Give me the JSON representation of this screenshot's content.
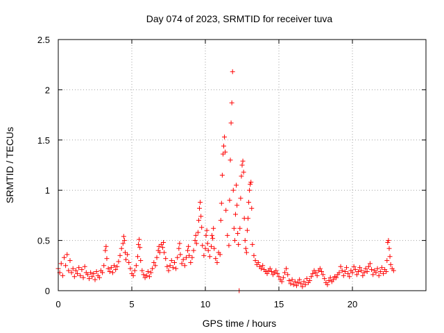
{
  "chart_data": {
    "type": "scatter",
    "title": "Day 074 of 2023, SRMTID for receiver tuva",
    "xlabel": "GPS time / hours",
    "ylabel": "SRMTID / TECUs",
    "xlim": [
      0,
      25
    ],
    "ylim": [
      0,
      2.5
    ],
    "x_ticks": [
      0,
      5,
      10,
      15,
      20
    ],
    "x_tick_labels": [
      "0",
      "5",
      "10",
      "15",
      "20"
    ],
    "y_ticks": [
      0,
      0.5,
      1,
      1.5,
      2,
      2.5
    ],
    "y_tick_labels": [
      "0",
      "0.5",
      "1",
      "1.5",
      "2",
      "2.5"
    ],
    "grid": true,
    "marker": "+",
    "color": "#ff0000",
    "series": [
      {
        "name": "SRMTID",
        "points": [
          [
            0.0,
            0.22
          ],
          [
            0.1,
            0.18
          ],
          [
            0.2,
            0.27
          ],
          [
            0.3,
            0.15
          ],
          [
            0.4,
            0.33
          ],
          [
            0.5,
            0.25
          ],
          [
            0.6,
            0.36
          ],
          [
            0.7,
            0.2
          ],
          [
            0.8,
            0.3
          ],
          [
            0.9,
            0.18
          ],
          [
            1.0,
            0.22
          ],
          [
            1.1,
            0.14
          ],
          [
            1.2,
            0.2
          ],
          [
            1.3,
            0.17
          ],
          [
            1.4,
            0.23
          ],
          [
            1.5,
            0.15
          ],
          [
            1.6,
            0.21
          ],
          [
            1.7,
            0.13
          ],
          [
            1.8,
            0.24
          ],
          [
            1.9,
            0.18
          ],
          [
            2.0,
            0.16
          ],
          [
            2.1,
            0.12
          ],
          [
            2.2,
            0.18
          ],
          [
            2.3,
            0.14
          ],
          [
            2.4,
            0.17
          ],
          [
            2.5,
            0.11
          ],
          [
            2.6,
            0.19
          ],
          [
            2.7,
            0.15
          ],
          [
            2.8,
            0.13
          ],
          [
            2.9,
            0.2
          ],
          [
            3.0,
            0.18
          ],
          [
            3.1,
            0.25
          ],
          [
            3.2,
            0.4
          ],
          [
            3.25,
            0.44
          ],
          [
            3.3,
            0.32
          ],
          [
            3.4,
            0.22
          ],
          [
            3.5,
            0.19
          ],
          [
            3.6,
            0.23
          ],
          [
            3.7,
            0.18
          ],
          [
            3.8,
            0.25
          ],
          [
            3.9,
            0.21
          ],
          [
            4.0,
            0.24
          ],
          [
            4.1,
            0.29
          ],
          [
            4.2,
            0.35
          ],
          [
            4.3,
            0.42
          ],
          [
            4.4,
            0.47
          ],
          [
            4.45,
            0.54
          ],
          [
            4.5,
            0.5
          ],
          [
            4.55,
            0.38
          ],
          [
            4.6,
            0.31
          ],
          [
            4.7,
            0.36
          ],
          [
            4.8,
            0.28
          ],
          [
            4.9,
            0.22
          ],
          [
            5.0,
            0.17
          ],
          [
            5.1,
            0.15
          ],
          [
            5.2,
            0.2
          ],
          [
            5.3,
            0.25
          ],
          [
            5.4,
            0.34
          ],
          [
            5.45,
            0.46
          ],
          [
            5.5,
            0.51
          ],
          [
            5.55,
            0.43
          ],
          [
            5.6,
            0.3
          ],
          [
            5.7,
            0.2
          ],
          [
            5.8,
            0.16
          ],
          [
            5.9,
            0.13
          ],
          [
            6.0,
            0.15
          ],
          [
            6.1,
            0.19
          ],
          [
            6.2,
            0.14
          ],
          [
            6.3,
            0.18
          ],
          [
            6.4,
            0.22
          ],
          [
            6.5,
            0.28
          ],
          [
            6.6,
            0.25
          ],
          [
            6.7,
            0.33
          ],
          [
            6.8,
            0.4
          ],
          [
            6.85,
            0.44
          ],
          [
            6.9,
            0.38
          ],
          [
            7.0,
            0.46
          ],
          [
            7.1,
            0.43
          ],
          [
            7.15,
            0.48
          ],
          [
            7.2,
            0.38
          ],
          [
            7.3,
            0.32
          ],
          [
            7.4,
            0.24
          ],
          [
            7.5,
            0.2
          ],
          [
            7.6,
            0.25
          ],
          [
            7.7,
            0.3
          ],
          [
            7.8,
            0.23
          ],
          [
            7.9,
            0.28
          ],
          [
            8.0,
            0.22
          ],
          [
            8.1,
            0.33
          ],
          [
            8.2,
            0.42
          ],
          [
            8.25,
            0.47
          ],
          [
            8.3,
            0.36
          ],
          [
            8.4,
            0.27
          ],
          [
            8.5,
            0.31
          ],
          [
            8.6,
            0.25
          ],
          [
            8.7,
            0.33
          ],
          [
            8.8,
            0.4
          ],
          [
            8.85,
            0.44
          ],
          [
            8.9,
            0.35
          ],
          [
            9.0,
            0.28
          ],
          [
            9.1,
            0.33
          ],
          [
            9.2,
            0.4
          ],
          [
            9.3,
            0.5
          ],
          [
            9.35,
            0.55
          ],
          [
            9.4,
            0.47
          ],
          [
            9.5,
            0.58
          ],
          [
            9.55,
            0.7
          ],
          [
            9.6,
            0.82
          ],
          [
            9.65,
            0.88
          ],
          [
            9.7,
            0.74
          ],
          [
            9.75,
            0.63
          ],
          [
            9.8,
            0.45
          ],
          [
            9.9,
            0.35
          ],
          [
            10.0,
            0.42
          ],
          [
            10.05,
            0.55
          ],
          [
            10.1,
            0.6
          ],
          [
            10.15,
            0.47
          ],
          [
            10.2,
            0.4
          ],
          [
            10.3,
            0.34
          ],
          [
            10.4,
            0.44
          ],
          [
            10.45,
            0.55
          ],
          [
            10.5,
            0.52
          ],
          [
            10.55,
            0.62
          ],
          [
            10.6,
            0.42
          ],
          [
            10.7,
            0.32
          ],
          [
            10.8,
            0.28
          ],
          [
            10.9,
            0.38
          ],
          [
            11.0,
            0.36
          ],
          [
            11.05,
            0.7
          ],
          [
            11.1,
            0.87
          ],
          [
            11.15,
            1.15
          ],
          [
            11.2,
            1.36
          ],
          [
            11.25,
            1.44
          ],
          [
            11.3,
            1.53
          ],
          [
            11.35,
            1.38
          ],
          [
            11.4,
            0.8
          ],
          [
            11.5,
            0.55
          ],
          [
            11.6,
            0.45
          ],
          [
            11.65,
            0.9
          ],
          [
            11.7,
            1.3
          ],
          [
            11.75,
            1.67
          ],
          [
            11.8,
            1.87
          ],
          [
            11.85,
            2.18
          ],
          [
            11.9,
            1.0
          ],
          [
            11.95,
            0.62
          ],
          [
            12.0,
            0.5
          ],
          [
            12.05,
            0.76
          ],
          [
            12.1,
            1.05
          ],
          [
            12.15,
            0.85
          ],
          [
            12.2,
            0.57
          ],
          [
            12.25,
            0.46
          ],
          [
            12.3,
            0.0
          ],
          [
            12.35,
            0.62
          ],
          [
            12.4,
            0.92
          ],
          [
            12.45,
            1.14
          ],
          [
            12.5,
            1.25
          ],
          [
            12.55,
            1.29
          ],
          [
            12.6,
            1.18
          ],
          [
            12.65,
            0.72
          ],
          [
            12.7,
            0.5
          ],
          [
            12.75,
            0.42
          ],
          [
            12.8,
            0.38
          ],
          [
            12.85,
            0.6
          ],
          [
            12.9,
            0.72
          ],
          [
            12.95,
            0.88
          ],
          [
            13.0,
            1.0
          ],
          [
            13.05,
            1.06
          ],
          [
            13.1,
            1.08
          ],
          [
            13.15,
            0.82
          ],
          [
            13.2,
            0.46
          ],
          [
            13.3,
            0.35
          ],
          [
            13.4,
            0.3
          ],
          [
            13.5,
            0.26
          ],
          [
            13.6,
            0.28
          ],
          [
            13.7,
            0.24
          ],
          [
            13.8,
            0.22
          ],
          [
            13.9,
            0.25
          ],
          [
            14.0,
            0.21
          ],
          [
            14.1,
            0.19
          ],
          [
            14.2,
            0.17
          ],
          [
            14.3,
            0.2
          ],
          [
            14.4,
            0.22
          ],
          [
            14.5,
            0.19
          ],
          [
            14.6,
            0.16
          ],
          [
            14.7,
            0.18
          ],
          [
            14.8,
            0.2
          ],
          [
            14.9,
            0.17
          ],
          [
            15.0,
            0.14
          ],
          [
            15.1,
            0.11
          ],
          [
            15.2,
            0.09
          ],
          [
            15.3,
            0.13
          ],
          [
            15.4,
            0.18
          ],
          [
            15.5,
            0.22
          ],
          [
            15.6,
            0.16
          ],
          [
            15.7,
            0.1
          ],
          [
            15.8,
            0.07
          ],
          [
            15.9,
            0.11
          ],
          [
            16.0,
            0.06
          ],
          [
            16.1,
            0.09
          ],
          [
            16.2,
            0.05
          ],
          [
            16.3,
            0.08
          ],
          [
            16.4,
            0.11
          ],
          [
            16.5,
            0.07
          ],
          [
            16.6,
            0.04
          ],
          [
            16.7,
            0.09
          ],
          [
            16.8,
            0.06
          ],
          [
            16.9,
            0.12
          ],
          [
            17.0,
            0.08
          ],
          [
            17.1,
            0.1
          ],
          [
            17.2,
            0.14
          ],
          [
            17.3,
            0.17
          ],
          [
            17.4,
            0.2
          ],
          [
            17.5,
            0.18
          ],
          [
            17.6,
            0.15
          ],
          [
            17.7,
            0.2
          ],
          [
            17.8,
            0.22
          ],
          [
            17.9,
            0.19
          ],
          [
            18.0,
            0.16
          ],
          [
            18.1,
            0.12
          ],
          [
            18.2,
            0.08
          ],
          [
            18.3,
            0.06
          ],
          [
            18.4,
            0.1
          ],
          [
            18.5,
            0.13
          ],
          [
            18.6,
            0.09
          ],
          [
            18.7,
            0.11
          ],
          [
            18.8,
            0.14
          ],
          [
            18.9,
            0.13
          ],
          [
            19.0,
            0.16
          ],
          [
            19.1,
            0.18
          ],
          [
            19.2,
            0.24
          ],
          [
            19.3,
            0.2
          ],
          [
            19.4,
            0.15
          ],
          [
            19.5,
            0.19
          ],
          [
            19.6,
            0.23
          ],
          [
            19.7,
            0.17
          ],
          [
            19.8,
            0.14
          ],
          [
            19.9,
            0.2
          ],
          [
            20.0,
            0.18
          ],
          [
            20.1,
            0.24
          ],
          [
            20.2,
            0.21
          ],
          [
            20.3,
            0.16
          ],
          [
            20.4,
            0.19
          ],
          [
            20.5,
            0.23
          ],
          [
            20.6,
            0.2
          ],
          [
            20.7,
            0.15
          ],
          [
            20.8,
            0.18
          ],
          [
            20.9,
            0.22
          ],
          [
            21.0,
            0.19
          ],
          [
            21.1,
            0.24
          ],
          [
            21.2,
            0.27
          ],
          [
            21.3,
            0.21
          ],
          [
            21.4,
            0.16
          ],
          [
            21.5,
            0.2
          ],
          [
            21.6,
            0.18
          ],
          [
            21.7,
            0.22
          ],
          [
            21.8,
            0.15
          ],
          [
            21.9,
            0.19
          ],
          [
            22.0,
            0.23
          ],
          [
            22.1,
            0.17
          ],
          [
            22.2,
            0.21
          ],
          [
            22.3,
            0.19
          ],
          [
            22.35,
            0.3
          ],
          [
            22.4,
            0.48
          ],
          [
            22.45,
            0.5
          ],
          [
            22.5,
            0.42
          ],
          [
            22.55,
            0.34
          ],
          [
            22.6,
            0.26
          ],
          [
            22.7,
            0.22
          ],
          [
            22.8,
            0.2
          ]
        ]
      }
    ]
  }
}
